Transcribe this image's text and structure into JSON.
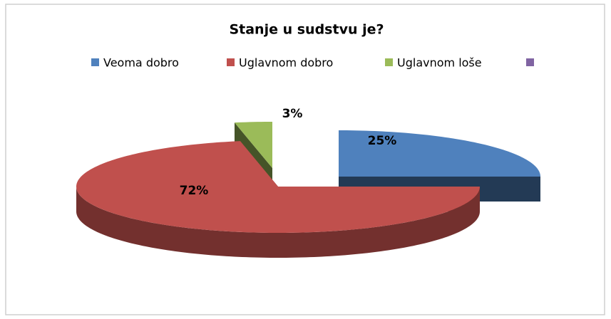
{
  "chart_data": {
    "type": "pie3d",
    "title": "Stanje u sudstvu je?",
    "categories": [
      "Veoma dobro",
      "Uglavnom dobro",
      "Uglavnom loše",
      null
    ],
    "values": [
      25,
      72,
      3,
      0
    ],
    "value_labels": [
      "25%",
      "72%",
      "3%",
      null
    ],
    "colors": [
      "#4f81bd",
      "#c0504d",
      "#9bbb59",
      "#8064a2"
    ],
    "legend": "top"
  }
}
